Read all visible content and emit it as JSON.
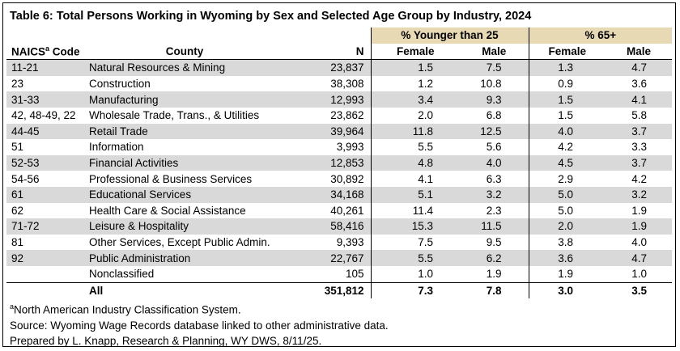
{
  "title": "Table 6: Total Persons Working in Wyoming by Sex and Selected Age Group by Industry, 2024",
  "table": {
    "groups": [
      "% Younger than 25",
      "% 65+"
    ],
    "header": {
      "naics": "NAICS",
      "naics_sup": "a",
      "naics_rest": "Code",
      "county": "County",
      "n": "N",
      "female_young": "Female",
      "male_young": "Male",
      "female_old": "Female",
      "male_old": "Male"
    },
    "rows": [
      [
        "11-21",
        "Natural Resources & Mining",
        "23,837",
        "1.5",
        "7.5",
        "1.3",
        "4.7"
      ],
      [
        "23",
        "Construction",
        "38,308",
        "1.2",
        "10.8",
        "0.9",
        "3.6"
      ],
      [
        "31-33",
        "Manufacturing",
        "12,993",
        "3.4",
        "9.3",
        "1.5",
        "4.1"
      ],
      [
        "42, 48-49, 22",
        "Wholesale Trade, Trans., & Utilities",
        "23,862",
        "2.0",
        "6.8",
        "1.5",
        "5.8"
      ],
      [
        "44-45",
        "Retail Trade",
        "39,964",
        "11.8",
        "12.5",
        "4.0",
        "3.7"
      ],
      [
        "51",
        "Information",
        "3,993",
        "5.5",
        "5.6",
        "4.2",
        "3.3"
      ],
      [
        "52-53",
        "Financial Activities",
        "12,853",
        "4.8",
        "4.0",
        "4.5",
        "3.7"
      ],
      [
        "54-56",
        "Professional & Business Services",
        "30,892",
        "4.1",
        "6.3",
        "2.9",
        "4.2"
      ],
      [
        "61",
        "Educational Services",
        "34,168",
        "5.1",
        "3.2",
        "5.0",
        "3.2"
      ],
      [
        "62",
        "Health Care & Social Assistance",
        "40,261",
        "11.4",
        "2.3",
        "5.0",
        "1.9"
      ],
      [
        "71-72",
        "Leisure & Hospitality",
        "58,416",
        "15.3",
        "11.5",
        "2.0",
        "1.9"
      ],
      [
        "81",
        "Other Services, Except Public Admin.",
        "9,393",
        "7.5",
        "9.5",
        "3.8",
        "4.0"
      ],
      [
        "92",
        "Public Administration",
        "22,767",
        "5.5",
        "6.2",
        "3.6",
        "4.7"
      ],
      [
        null,
        "Nonclassified",
        "105",
        "1.0",
        "1.9",
        "1.9",
        "1.0"
      ]
    ],
    "total": [
      null,
      "All",
      "351,812",
      "7.3",
      "7.8",
      "3.0",
      "3.5"
    ]
  },
  "notes": {
    "sup": "a",
    "naics": "North American Industry Classification System.",
    "source": "Source: Wyoming Wage Records database linked to other administrative data.",
    "prepared": "Prepared by L. Knapp, Research & Planning, WY DWS, 8/11/25."
  }
}
